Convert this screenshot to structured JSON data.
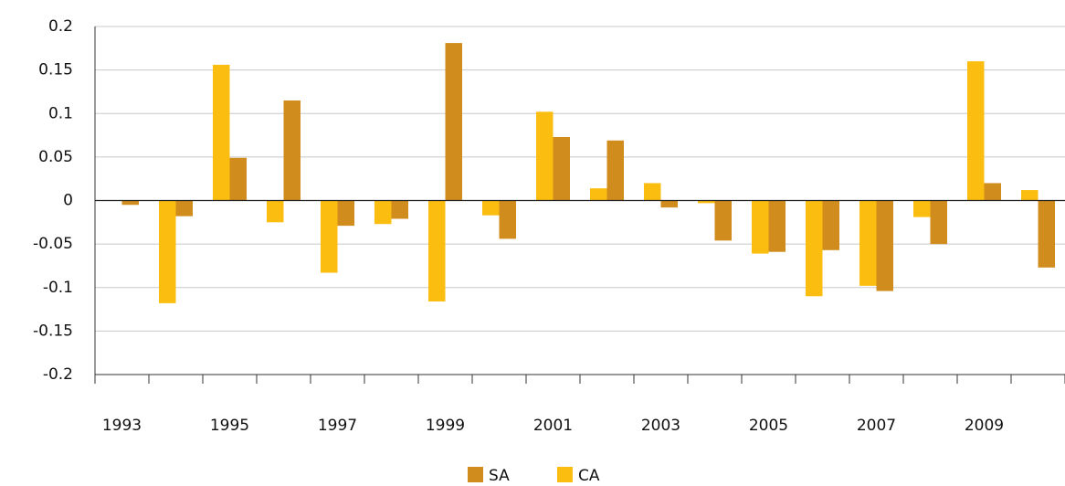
{
  "chart_data": {
    "type": "bar",
    "categories": [
      "1993",
      null,
      "1995",
      null,
      "1997",
      null,
      "1999",
      null,
      "2001",
      null,
      "2003",
      null,
      "2005",
      null,
      "2007",
      null,
      "2009",
      null
    ],
    "series": [
      {
        "name": "SA",
        "color": "#d08c1c",
        "values": [
          -0.005,
          -0.018,
          0.049,
          0.115,
          -0.029,
          -0.021,
          0.181,
          -0.044,
          0.073,
          0.069,
          -0.008,
          -0.046,
          -0.059,
          -0.057,
          -0.104,
          -0.05,
          0.02,
          -0.077
        ]
      },
      {
        "name": "CA",
        "color": "#fbbd10",
        "values": [
          0,
          -0.118,
          0.156,
          -0.025,
          -0.083,
          -0.027,
          -0.116,
          -0.017,
          0.102,
          0.014,
          0.02,
          -0.003,
          -0.061,
          -0.11,
          -0.098,
          -0.019,
          0.16,
          0.012
        ]
      }
    ],
    "ylim": [
      -0.2,
      0.2
    ],
    "yticks": [
      -0.2,
      -0.15,
      -0.1,
      -0.05,
      0,
      0.05,
      0.1,
      0.15,
      0.2
    ],
    "grid": true
  }
}
